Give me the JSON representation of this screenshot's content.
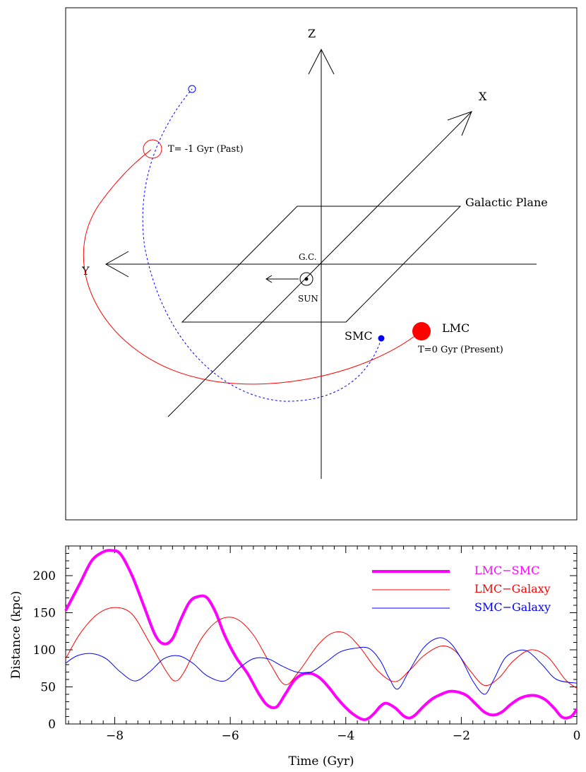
{
  "orbit_diagram": {
    "axis_z": "Z",
    "axis_x": "X",
    "axis_y": "Y",
    "plane_label": "Galactic Plane",
    "gc_label": "G.C.",
    "sun_label": "SUN",
    "smc_label": "SMC",
    "lmc_label": "LMC",
    "past_label": "T= -1 Gyr (Past)",
    "present_label": "T=0 Gyr (Present)",
    "colors": {
      "lmc": "#ff0000",
      "smc": "#0000ff",
      "frame": "#000000"
    }
  },
  "chart_data": {
    "type": "line",
    "xlabel": "Time (Gyr)",
    "ylabel": "Distance (kpc)",
    "xlim": [
      -8.85,
      0
    ],
    "ylim": [
      0,
      240
    ],
    "xticks": [
      -8,
      -6,
      -4,
      -2,
      0
    ],
    "yticks": [
      0,
      50,
      100,
      150,
      200
    ],
    "legend_position": "top-right",
    "series": [
      {
        "name": "LMC−SMC",
        "color": "#ff00ff",
        "x": [
          -8.85,
          -8.6,
          -8.4,
          -8.2,
          -8.05,
          -7.9,
          -7.7,
          -7.5,
          -7.3,
          -7.15,
          -7.0,
          -6.85,
          -6.7,
          -6.55,
          -6.4,
          -6.25,
          -6.1,
          -5.9,
          -5.7,
          -5.5,
          -5.35,
          -5.2,
          -5.05,
          -4.9,
          -4.75,
          -4.6,
          -4.45,
          -4.3,
          -4.15,
          -4.0,
          -3.85,
          -3.7,
          -3.6,
          -3.5,
          -3.4,
          -3.3,
          -3.15,
          -3.0,
          -2.9,
          -2.8,
          -2.65,
          -2.5,
          -2.35,
          -2.2,
          -2.05,
          -1.9,
          -1.75,
          -1.6,
          -1.45,
          -1.3,
          -1.15,
          -1.0,
          -0.85,
          -0.7,
          -0.55,
          -0.4,
          -0.25,
          -0.1,
          0.0
        ],
        "values": [
          153,
          190,
          220,
          232,
          234,
          229,
          200,
          160,
          120,
          108,
          115,
          142,
          165,
          172,
          170,
          150,
          120,
          90,
          68,
          40,
          25,
          23,
          40,
          58,
          67,
          68,
          62,
          50,
          35,
          22,
          12,
          6,
          8,
          15,
          24,
          28,
          22,
          11,
          8,
          12,
          24,
          34,
          40,
          44,
          43,
          38,
          27,
          16,
          12,
          16,
          26,
          34,
          38,
          38,
          33,
          22,
          9,
          10,
          20
        ]
      },
      {
        "name": "LMC−Galaxy",
        "color": "#ff0000",
        "x": [
          -8.85,
          -8.6,
          -8.3,
          -8.0,
          -7.7,
          -7.4,
          -7.1,
          -6.95,
          -6.8,
          -6.5,
          -6.2,
          -5.9,
          -5.6,
          -5.3,
          -5.05,
          -4.8,
          -4.5,
          -4.25,
          -4.0,
          -3.75,
          -3.45,
          -3.15,
          -2.9,
          -2.65,
          -2.35,
          -2.1,
          -1.85,
          -1.6,
          -1.35,
          -1.1,
          -0.8,
          -0.5,
          -0.2,
          0.0
        ],
        "values": [
          88,
          122,
          148,
          157,
          148,
          110,
          70,
          58,
          70,
          115,
          140,
          142,
          120,
          80,
          53,
          72,
          105,
          122,
          122,
          103,
          72,
          57,
          72,
          92,
          105,
          98,
          72,
          52,
          62,
          85,
          100,
          90,
          60,
          48
        ]
      },
      {
        "name": "SMC−Galaxy",
        "color": "#0000ff",
        "x": [
          -8.85,
          -8.65,
          -8.4,
          -8.15,
          -7.9,
          -7.65,
          -7.4,
          -7.15,
          -6.9,
          -6.65,
          -6.4,
          -6.1,
          -5.85,
          -5.6,
          -5.35,
          -5.1,
          -4.85,
          -4.6,
          -4.35,
          -4.1,
          -3.85,
          -3.6,
          -3.4,
          -3.25,
          -3.1,
          -2.9,
          -2.65,
          -2.4,
          -2.2,
          -2.0,
          -1.8,
          -1.6,
          -1.45,
          -1.25,
          -1.05,
          -0.85,
          -0.6,
          -0.35,
          0.0
        ],
        "values": [
          82,
          92,
          95,
          88,
          70,
          58,
          70,
          88,
          92,
          82,
          65,
          58,
          75,
          88,
          88,
          78,
          70,
          70,
          83,
          97,
          102,
          102,
          85,
          62,
          47,
          72,
          103,
          116,
          110,
          88,
          58,
          40,
          58,
          88,
          98,
          98,
          80,
          60,
          55
        ]
      }
    ]
  }
}
